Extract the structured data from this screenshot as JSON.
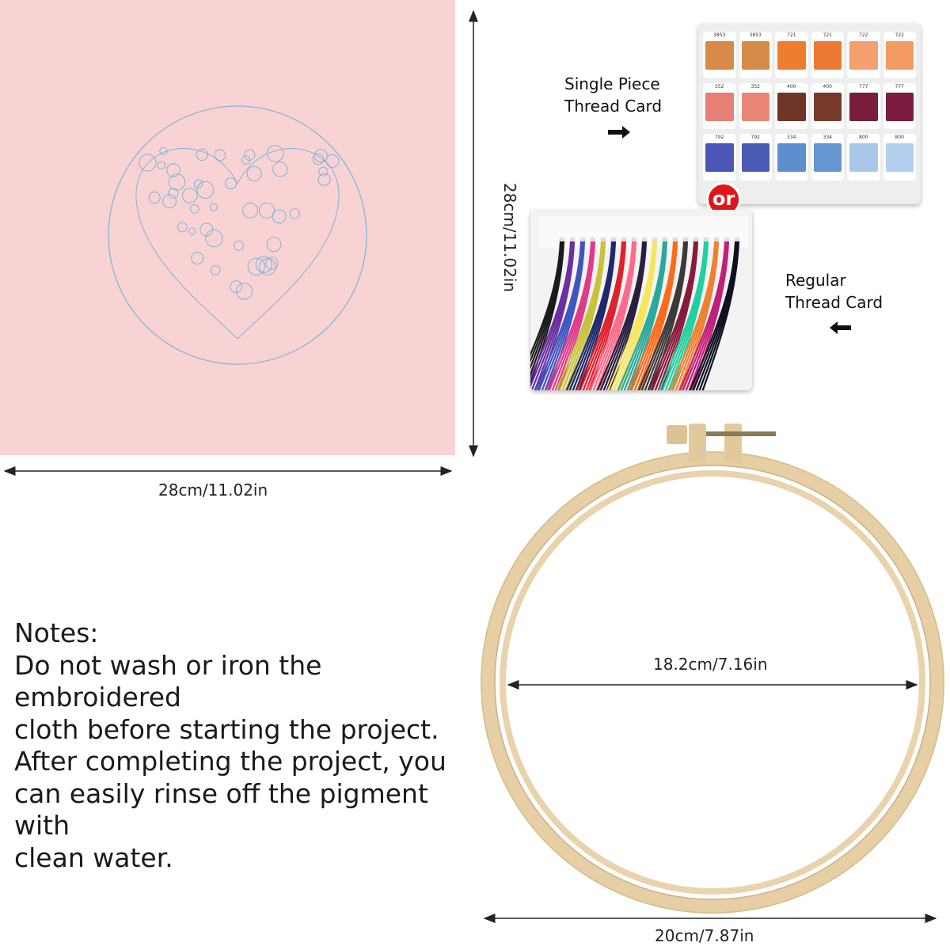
{
  "fabric": {
    "color": "#f9d3d3",
    "pattern_color": "#86b6d9",
    "height_label": "28cm/11.02in",
    "width_label": "28cm/11.02in"
  },
  "single_card": {
    "label_line1": "Single Piece",
    "label_line2": "Thread Card",
    "arrow": "arrow-right-icon",
    "spools": [
      {
        "num": "3853",
        "color": "#d98a4a"
      },
      {
        "num": "3853",
        "color": "#d48a48"
      },
      {
        "num": "721",
        "color": "#ef7d30"
      },
      {
        "num": "721",
        "color": "#ec7a34"
      },
      {
        "num": "722",
        "color": "#f5a070"
      },
      {
        "num": "722",
        "color": "#f39a62"
      },
      {
        "num": "352",
        "color": "#e77f74"
      },
      {
        "num": "352",
        "color": "#ea8676"
      },
      {
        "num": "400",
        "color": "#6e3426"
      },
      {
        "num": "400",
        "color": "#763a2c"
      },
      {
        "num": "777",
        "color": "#7a1e3e"
      },
      {
        "num": "777",
        "color": "#7c1c42"
      },
      {
        "num": "792",
        "color": "#4a56b8"
      },
      {
        "num": "792",
        "color": "#4c5ab8"
      },
      {
        "num": "334",
        "color": "#5d8fce"
      },
      {
        "num": "334",
        "color": "#6496d2"
      },
      {
        "num": "800",
        "color": "#a8c8ea"
      },
      {
        "num": "800",
        "color": "#b2d0ee"
      }
    ]
  },
  "or_badge": "or",
  "regular_card": {
    "label_line1": "Regular",
    "label_line2": "Thread Card",
    "arrow": "arrow-left-icon",
    "thread_colors": [
      "#1b1b1b",
      "#6b2fa0",
      "#3f55c0",
      "#e03a8a",
      "#c7c23a",
      "#1f2a6b",
      "#e0202a",
      "#ff6a8a",
      "#2a1f3f",
      "#f6e65a",
      "#2aa89a",
      "#ff6a1a",
      "#3a3a3a",
      "#8a1a3a",
      "#1fd0a0",
      "#f08030",
      "#c0207a",
      "#101020"
    ]
  },
  "hoop": {
    "color": "#e9d3ab",
    "inner_label": "18.2cm/7.16in",
    "outer_label": "20cm/7.87in"
  },
  "notes": {
    "heading": "Notes:",
    "lines": [
      "Do not wash or iron the embroidered",
      "cloth before starting the project.",
      "After completing the project, you",
      "can easily rinse off the pigment with",
      "clean water."
    ]
  }
}
